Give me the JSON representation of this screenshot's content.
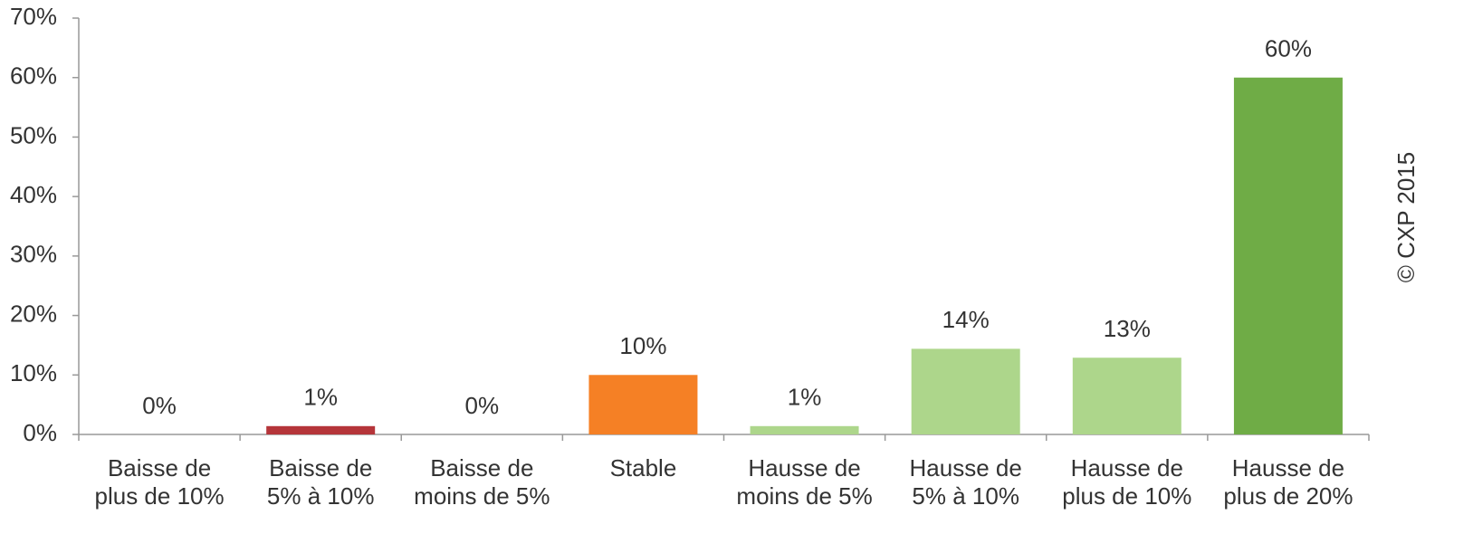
{
  "chart_data": {
    "type": "bar",
    "categories": [
      "Baisse de\nplus de 10%",
      "Baisse de\n5% à 10%",
      "Baisse de\nmoins de 5%",
      "Stable",
      "Hausse de\nmoins de 5%",
      "Hausse de\n5% à 10%",
      "Hausse de\nplus de 10%",
      "Hausse de\nplus de 20%"
    ],
    "values": [
      0,
      1.4,
      0,
      10,
      1.4,
      14.4,
      12.9,
      60
    ],
    "value_labels": [
      "0%",
      "1%",
      "0%",
      "10%",
      "1%",
      "14%",
      "13%",
      "60%"
    ],
    "colors": [
      "#b5353a",
      "#b5353a",
      "#b5353a",
      "#f58025",
      "#add68b",
      "#add68b",
      "#add68b",
      "#6fac46"
    ],
    "ylim": [
      0,
      70
    ],
    "yticks": [
      {
        "value": 0,
        "label": "0%"
      },
      {
        "value": 10,
        "label": "10%"
      },
      {
        "value": 20,
        "label": "20%"
      },
      {
        "value": 30,
        "label": "30%"
      },
      {
        "value": 40,
        "label": "40%"
      },
      {
        "value": 50,
        "label": "50%"
      },
      {
        "value": 60,
        "label": "60%"
      },
      {
        "value": 70,
        "label": "70%"
      }
    ],
    "grid": false,
    "annotation": "© CXP 2015"
  }
}
